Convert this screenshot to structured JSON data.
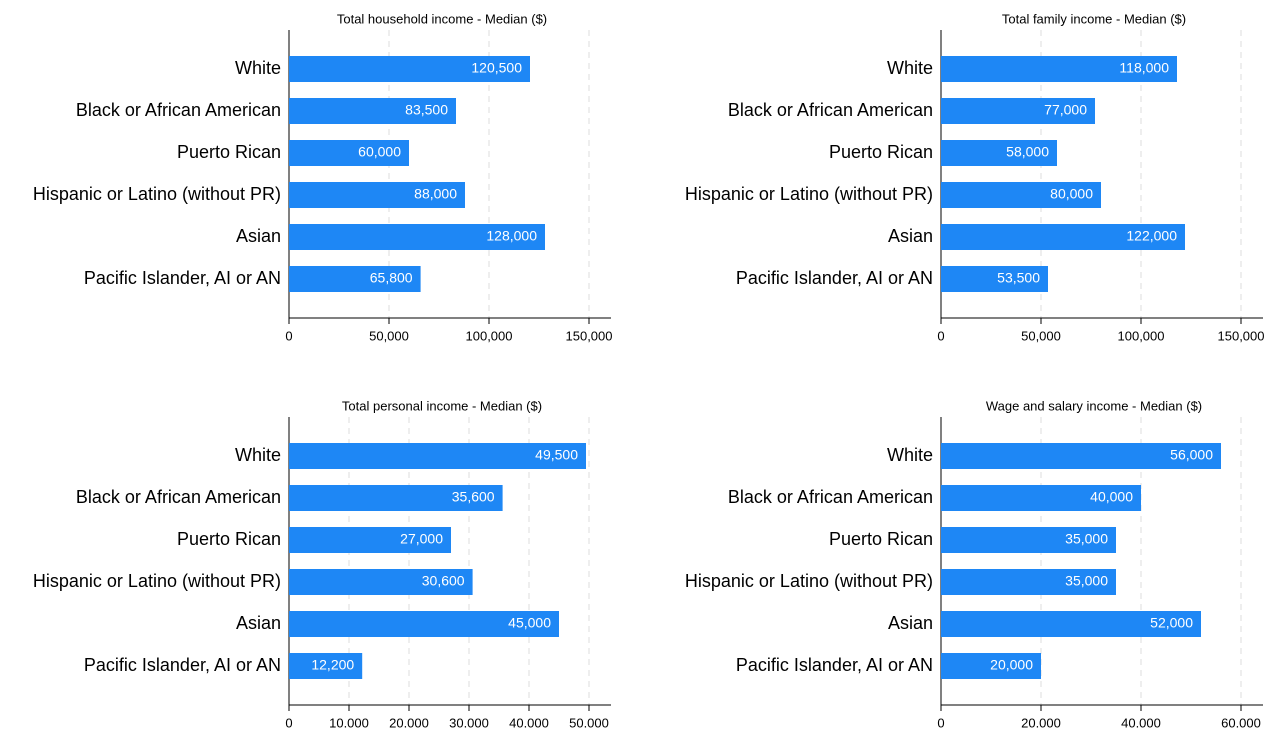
{
  "chart_data": [
    {
      "type": "barh",
      "title": "Total household income - Median ($)",
      "categories": [
        "White",
        "Black or African American",
        "Puerto Rican",
        "Hispanic or Latino (without PR)",
        "Asian",
        "Pacific Islander, AI or AN"
      ],
      "values": [
        120500,
        83500,
        60000,
        88000,
        128000,
        65800
      ],
      "value_labels": [
        "120,500",
        "83,500",
        "60,000",
        "88,000",
        "128,000",
        "65,800"
      ],
      "color": "#1e87f5",
      "xlim": [
        0,
        150000
      ],
      "xticks": [
        0,
        {
          "value": 50000,
          "label": "50,000"
        },
        {
          "value": 100000,
          "label": "100,000"
        },
        {
          "value": 150000,
          "label": "150,000"
        }
      ],
      "grid": true
    },
    {
      "type": "barh",
      "title": "Total family income - Median ($)",
      "categories": [
        "White",
        "Black or African American",
        "Puerto Rican",
        "Hispanic or Latino (without PR)",
        "Asian",
        "Pacific Islander, AI or AN"
      ],
      "values": [
        118000,
        77000,
        58000,
        80000,
        122000,
        53500
      ],
      "value_labels": [
        "118,000",
        "77,000",
        "58,000",
        "80,000",
        "122,000",
        "53,500"
      ],
      "color": "#1e87f5",
      "xlim": [
        0,
        150000
      ],
      "xticks": [
        0,
        {
          "value": 50000,
          "label": "50,000"
        },
        {
          "value": 100000,
          "label": "100,000"
        },
        {
          "value": 150000,
          "label": "150,000"
        }
      ],
      "grid": true
    },
    {
      "type": "barh",
      "title": "Total personal income - Median ($)",
      "categories": [
        "White",
        "Black or African American",
        "Puerto Rican",
        "Hispanic or Latino (without PR)",
        "Asian",
        "Pacific Islander, AI or AN"
      ],
      "values": [
        49500,
        35600,
        27000,
        30600,
        45000,
        12200
      ],
      "value_labels": [
        "49,500",
        "35,600",
        "27,000",
        "30,600",
        "45,000",
        "12,200"
      ],
      "color": "#1e87f5",
      "xlim": [
        0,
        50000
      ],
      "xticks": [
        0,
        {
          "value": 10000,
          "label": "10.000"
        },
        {
          "value": 20000,
          "label": "20.000"
        },
        {
          "value": 30000,
          "label": "30.000"
        },
        {
          "value": 40000,
          "label": "40.000"
        },
        {
          "value": 50000,
          "label": "50.000"
        }
      ],
      "grid": true
    },
    {
      "type": "barh",
      "title": "Wage and salary income - Median ($)",
      "categories": [
        "White",
        "Black or African American",
        "Puerto Rican",
        "Hispanic or Latino (without PR)",
        "Asian",
        "Pacific Islander, AI or AN"
      ],
      "values": [
        56000,
        40000,
        35000,
        35000,
        52000,
        20000
      ],
      "value_labels": [
        "56,000",
        "40,000",
        "35,000",
        "35,000",
        "52,000",
        "20,000"
      ],
      "color": "#1e87f5",
      "xlim": [
        0,
        60000
      ],
      "xticks": [
        0,
        {
          "value": 20000,
          "label": "20.000"
        },
        {
          "value": 40000,
          "label": "40.000"
        },
        {
          "value": 60000,
          "label": "60.000"
        }
      ],
      "grid": true
    }
  ]
}
